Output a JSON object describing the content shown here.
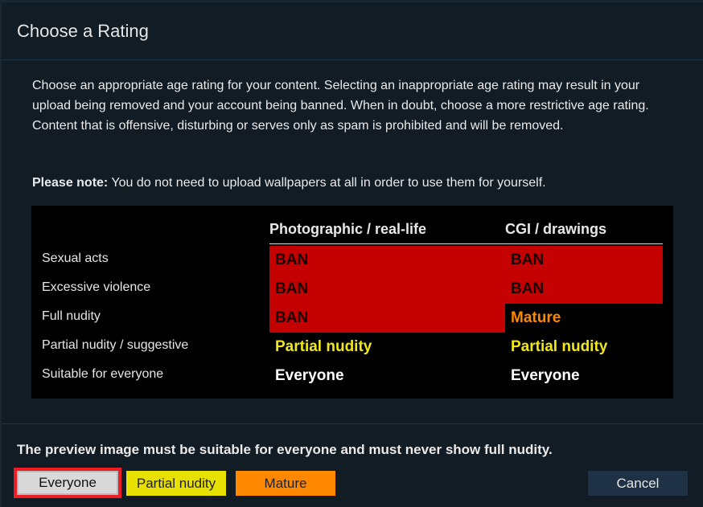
{
  "dialog": {
    "title": "Choose a Rating",
    "intro": "Choose an appropriate age rating for your content. Selecting an inappropriate age rating may result in your upload being removed and your account being banned. When in doubt, choose a more restrictive age rating. Content that is offensive, disturbing or serves only as spam is prohibited and will be removed.",
    "note_label": "Please note:",
    "note_text": " You do not need to upload wallpapers at all in order to use them for yourself."
  },
  "table": {
    "columns": [
      "Photographic / real-life",
      "CGI / drawings"
    ],
    "rows": [
      {
        "label": "Sexual acts",
        "photo": "BAN",
        "cgi": "BAN"
      },
      {
        "label": "Excessive violence",
        "photo": "BAN",
        "cgi": "BAN"
      },
      {
        "label": "Full nudity",
        "photo": "BAN",
        "cgi": "Mature"
      },
      {
        "label": "Partial nudity / suggestive",
        "photo": "Partial nudity",
        "cgi": "Partial nudity"
      },
      {
        "label": "Suitable for everyone",
        "photo": "Everyone",
        "cgi": "Everyone"
      }
    ]
  },
  "footer": {
    "note": "The preview image must be suitable for everyone and must never show full nudity.",
    "buttons": {
      "everyone": "Everyone",
      "partial": "Partial nudity",
      "mature": "Mature",
      "cancel": "Cancel"
    }
  },
  "colors": {
    "ban": "#c40000",
    "mature": "#ff8800",
    "partial": "#e8e000",
    "everyone": "#ffffff",
    "selected_outline": "#ee1c24"
  }
}
